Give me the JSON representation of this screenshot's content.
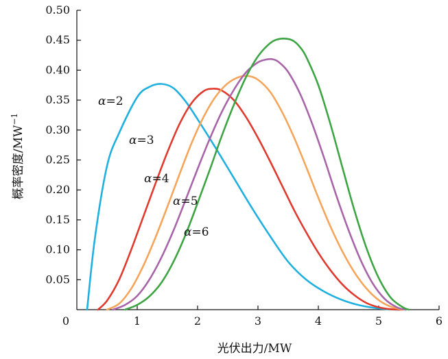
{
  "chart_data": {
    "type": "line",
    "title": "",
    "xlabel": "光伏出力/MW",
    "ylabel_main": "概率密度/MW",
    "ylabel_sup": "−1",
    "xlim": [
      0,
      6
    ],
    "ylim": [
      0,
      0.5
    ],
    "xticks": [
      "0",
      "1",
      "2",
      "3",
      "4",
      "5",
      "6"
    ],
    "yticks": [
      "0.05",
      "0.10",
      "0.15",
      "0.20",
      "0.25",
      "0.30",
      "0.35",
      "0.40",
      "0.45",
      "0.50"
    ],
    "grid": false,
    "series": [
      {
        "name": "α=2",
        "symbol": "α",
        "suffix": "=2",
        "color": "#1fb0e0",
        "x": [
          0.17,
          0.3,
          0.5,
          0.7,
          1.0,
          1.2,
          1.4,
          1.6,
          1.8,
          2.0,
          2.3,
          2.6,
          2.9,
          3.2,
          3.5,
          3.8,
          4.1,
          4.4,
          4.7,
          5.0,
          5.2,
          5.35
        ],
        "y": [
          0.0,
          0.12,
          0.24,
          0.295,
          0.355,
          0.372,
          0.377,
          0.37,
          0.348,
          0.318,
          0.27,
          0.22,
          0.17,
          0.123,
          0.08,
          0.05,
          0.03,
          0.016,
          0.007,
          0.002,
          0.0005,
          0.0
        ]
      },
      {
        "name": "α=3",
        "symbol": "α",
        "suffix": "=3",
        "color": "#e03a2e",
        "x": [
          0.35,
          0.5,
          0.7,
          0.9,
          1.1,
          1.3,
          1.5,
          1.7,
          1.9,
          2.1,
          2.25,
          2.4,
          2.6,
          2.8,
          3.0,
          3.2,
          3.4,
          3.6,
          3.8,
          4.0,
          4.2,
          4.4,
          4.6,
          4.8,
          5.0,
          5.2,
          5.4
        ],
        "y": [
          0.0,
          0.015,
          0.05,
          0.1,
          0.155,
          0.21,
          0.263,
          0.31,
          0.345,
          0.365,
          0.369,
          0.366,
          0.35,
          0.322,
          0.287,
          0.248,
          0.207,
          0.166,
          0.129,
          0.095,
          0.066,
          0.042,
          0.024,
          0.011,
          0.004,
          0.0008,
          0.0
        ]
      },
      {
        "name": "α=4",
        "symbol": "α",
        "suffix": "=4",
        "color": "#f5a55a",
        "x": [
          0.5,
          0.7,
          0.9,
          1.1,
          1.3,
          1.5,
          1.7,
          1.9,
          2.1,
          2.3,
          2.5,
          2.7,
          2.85,
          3.0,
          3.2,
          3.4,
          3.6,
          3.8,
          4.0,
          4.2,
          4.4,
          4.6,
          4.8,
          5.0,
          5.2,
          5.4
        ],
        "y": [
          0.0,
          0.01,
          0.035,
          0.073,
          0.12,
          0.172,
          0.226,
          0.278,
          0.322,
          0.356,
          0.378,
          0.389,
          0.39,
          0.384,
          0.364,
          0.33,
          0.287,
          0.238,
          0.187,
          0.139,
          0.097,
          0.062,
          0.035,
          0.016,
          0.005,
          0.0
        ]
      },
      {
        "name": "α=5",
        "symbol": "α",
        "suffix": "=5",
        "color": "#a864a8",
        "x": [
          0.6,
          0.8,
          1.0,
          1.2,
          1.4,
          1.6,
          1.8,
          2.0,
          2.2,
          2.4,
          2.6,
          2.8,
          3.0,
          3.15,
          3.25,
          3.35,
          3.5,
          3.7,
          3.9,
          4.1,
          4.3,
          4.5,
          4.7,
          4.9,
          5.1,
          5.3,
          5.45
        ],
        "y": [
          0.0,
          0.008,
          0.023,
          0.05,
          0.087,
          0.132,
          0.183,
          0.235,
          0.285,
          0.33,
          0.367,
          0.396,
          0.413,
          0.418,
          0.418,
          0.413,
          0.397,
          0.36,
          0.31,
          0.252,
          0.19,
          0.133,
          0.083,
          0.044,
          0.018,
          0.004,
          0.0
        ]
      },
      {
        "name": "α=6",
        "symbol": "α",
        "suffix": "=6",
        "color": "#3da443",
        "x": [
          0.8,
          1.0,
          1.2,
          1.4,
          1.6,
          1.8,
          2.0,
          2.2,
          2.4,
          2.6,
          2.8,
          3.0,
          3.2,
          3.35,
          3.5,
          3.6,
          3.7,
          3.8,
          4.0,
          4.2,
          4.4,
          4.6,
          4.8,
          5.0,
          5.2,
          5.4,
          5.5
        ],
        "y": [
          0.0,
          0.008,
          0.022,
          0.045,
          0.08,
          0.125,
          0.178,
          0.233,
          0.29,
          0.342,
          0.388,
          0.423,
          0.445,
          0.452,
          0.452,
          0.448,
          0.438,
          0.422,
          0.375,
          0.31,
          0.237,
          0.165,
          0.102,
          0.053,
          0.02,
          0.004,
          0.0
        ]
      }
    ]
  }
}
